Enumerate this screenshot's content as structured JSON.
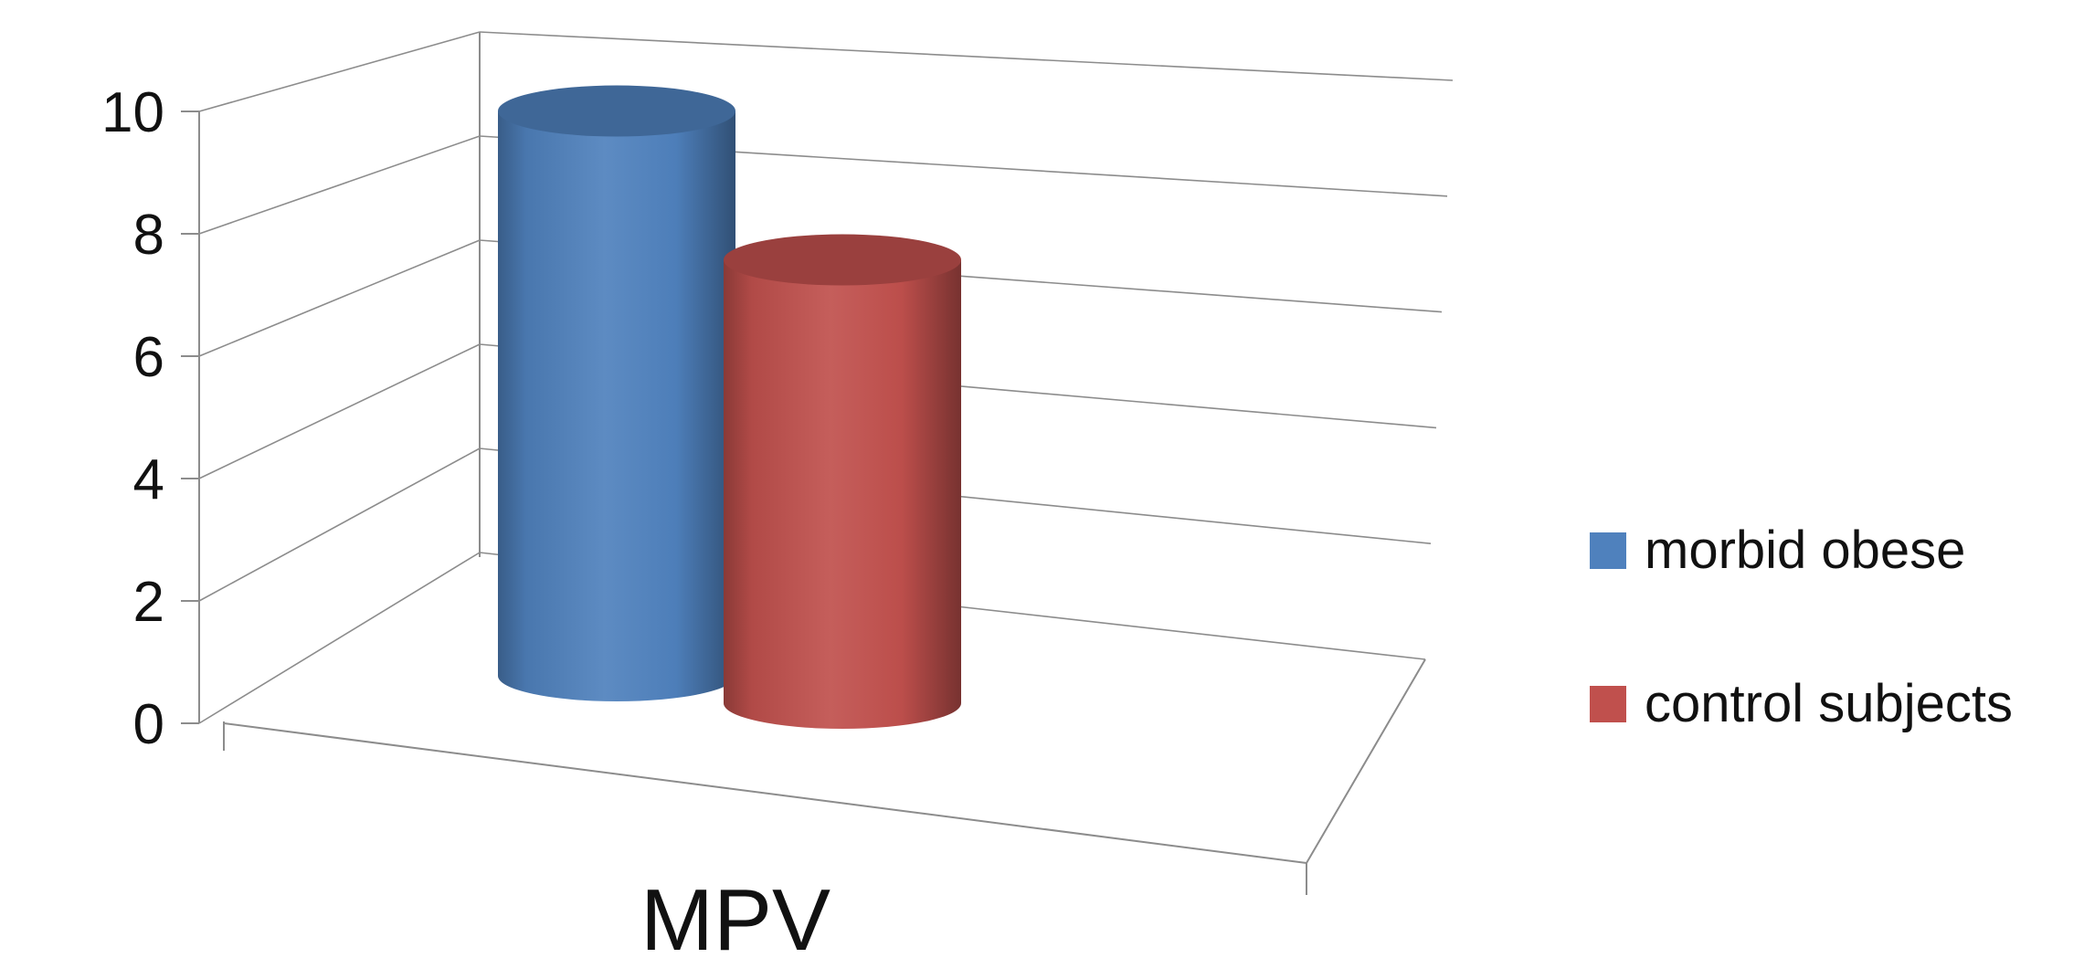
{
  "chart_data": {
    "type": "bar",
    "style": "3d-cylinder",
    "categories": [
      "MPV"
    ],
    "series": [
      {
        "name": "morbid obese",
        "values": [
          9.3
        ],
        "color": "#4f81bd"
      },
      {
        "name": "control subjects",
        "values": [
          7.3
        ],
        "color": "#c0504d"
      }
    ],
    "ylim": [
      0,
      10
    ],
    "yticks": [
      0,
      2,
      4,
      6,
      8,
      10
    ],
    "grid": true,
    "legend": "right",
    "title": "",
    "xlabel": "",
    "ylabel": ""
  }
}
